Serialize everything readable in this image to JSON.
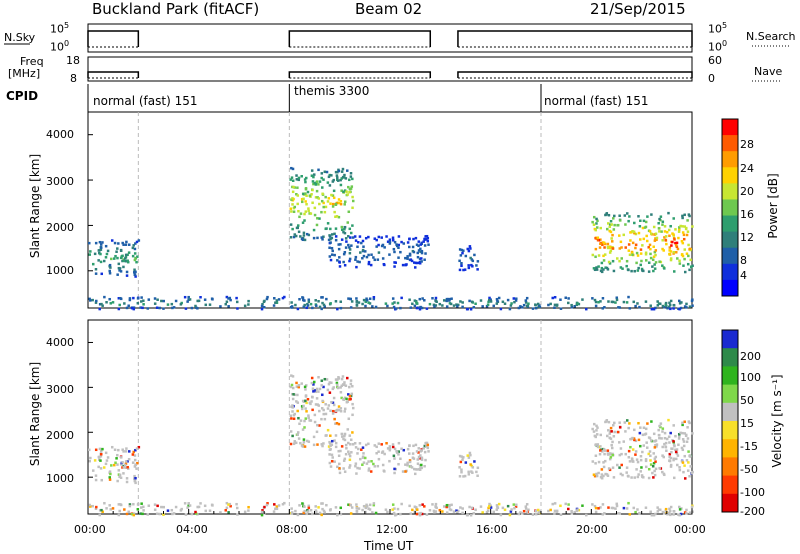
{
  "header": {
    "station": "Buckland Park (fitACF)",
    "beam": "Beam 02",
    "date": "21/Sep/2015"
  },
  "top_panels": {
    "nsky_label": "N.Sky",
    "nsky_ticks": [
      "10^5",
      "10^0"
    ],
    "nsearch_label": "N.Search",
    "nsearch_ticks": [
      "10^5",
      "10^0"
    ],
    "freq_label": "Freq",
    "freq_unit": "[MHz]",
    "freq_ticks": [
      "18",
      "8"
    ],
    "nave_label": "Nave",
    "nave_ticks": [
      "60",
      "0"
    ],
    "cpid_label": "CPID"
  },
  "cpid_segments": [
    {
      "label": "normal (fast) 151",
      "start_hour": 0
    },
    {
      "label": "themis 3300",
      "start_hour": 8
    },
    {
      "label": "normal (fast) 151",
      "start_hour": 18
    }
  ],
  "axes": {
    "ylabel": "Slant Range [km]",
    "xlabel": "Time UT",
    "yticks": [
      "4000",
      "3000",
      "2000",
      "1000"
    ],
    "xticks": [
      "00:00",
      "04:00",
      "08:00",
      "12:00",
      "16:00",
      "20:00",
      "00:00"
    ]
  },
  "power_colorbar": {
    "label": "Power [dB]",
    "ticks": [
      "28",
      "24",
      "20",
      "16",
      "12",
      "8",
      "4"
    ],
    "colors": [
      "#ff0000",
      "#ff5a00",
      "#ff9c00",
      "#ffd200",
      "#c8e632",
      "#6ec850",
      "#2e9e6e",
      "#2f7f7a",
      "#1f5fa8",
      "#0f2fdc",
      "#0000ff"
    ]
  },
  "velocity_colorbar": {
    "label": "Velocity [m s⁻¹]",
    "ticks": [
      "200",
      "100",
      "50",
      "15",
      "-15",
      "-50",
      "-100",
      "-200"
    ],
    "colors": [
      "#1a2ad0",
      "#2e8a4a",
      "#2fb41e",
      "#7fd84a",
      "#c0c0c0",
      "#f7e02a",
      "#ffb400",
      "#ff7a00",
      "#ff3a00",
      "#e00000"
    ]
  },
  "chart_data": {
    "type": "heatmap",
    "title": "Buckland Park (fitACF)",
    "xlabel": "Time UT",
    "ylabel": "Slant Range [km]",
    "xlim": [
      0,
      24
    ],
    "ylim": [
      180,
      4500
    ],
    "data_gaps_hours": [
      [
        2.0,
        8.0
      ],
      [
        13.6,
        14.7
      ]
    ],
    "power_echo_regions": [
      {
        "start_hour": 0.0,
        "end_hour": 2.0,
        "range_min": 900,
        "range_max": 1700,
        "peak_db": 14
      },
      {
        "start_hour": 8.0,
        "end_hour": 10.5,
        "range_min": 1700,
        "range_max": 3300,
        "peak_db": 22
      },
      {
        "start_hour": 9.5,
        "end_hour": 13.5,
        "range_min": 1100,
        "range_max": 1800,
        "peak_db": 8
      },
      {
        "start_hour": 14.7,
        "end_hour": 15.5,
        "range_min": 1000,
        "range_max": 1600,
        "peak_db": 8
      },
      {
        "start_hour": 20.0,
        "end_hour": 24.0,
        "range_min": 1000,
        "range_max": 2300,
        "peak_db": 28
      },
      {
        "start_hour": 0.0,
        "end_hour": 24.0,
        "range_min": 180,
        "range_max": 450,
        "peak_db": 12
      }
    ]
  }
}
